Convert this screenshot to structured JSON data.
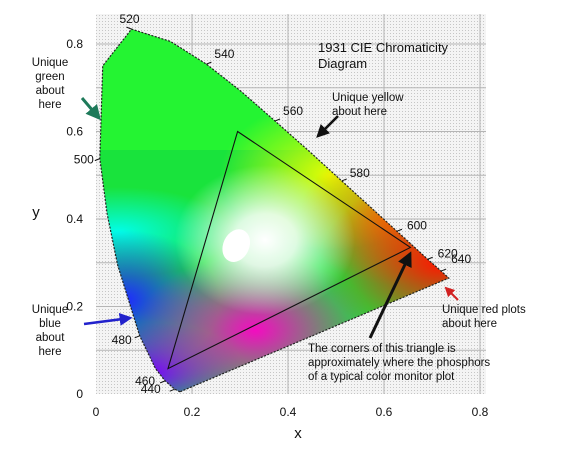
{
  "chart_data": {
    "type": "scatter",
    "title": "1931 CIE Chromaticity Diagram",
    "xlabel": "x",
    "ylabel": "y",
    "xlim": [
      0,
      0.8
    ],
    "ylim": [
      0,
      0.85
    ],
    "x_ticks": [
      {
        "value": 0,
        "label": "0"
      },
      {
        "value": 0.2,
        "label": "0.2"
      },
      {
        "value": 0.4,
        "label": "0.4"
      },
      {
        "value": 0.6,
        "label": "0.6"
      },
      {
        "value": 0.8,
        "label": "0.8"
      }
    ],
    "y_ticks": [
      {
        "value": 0,
        "label": "0"
      },
      {
        "value": 0.2,
        "label": "0.2"
      },
      {
        "value": 0.4,
        "label": "0.4"
      },
      {
        "value": 0.6,
        "label": "0.6"
      },
      {
        "value": 0.8,
        "label": "0.8"
      }
    ],
    "grid": true,
    "spectral_locus": [
      {
        "nm": "440",
        "x": 0.164,
        "y": 0.011
      },
      {
        "nm": "460",
        "x": 0.144,
        "y": 0.03
      },
      {
        "nm": "480",
        "x": 0.091,
        "y": 0.133
      },
      {
        "nm": "500",
        "x": 0.008,
        "y": 0.538
      },
      {
        "nm": "520",
        "x": 0.074,
        "y": 0.834
      },
      {
        "nm": "540",
        "x": 0.23,
        "y": 0.754
      },
      {
        "nm": "560",
        "x": 0.373,
        "y": 0.624
      },
      {
        "nm": "580",
        "x": 0.512,
        "y": 0.487
      },
      {
        "nm": "600",
        "x": 0.627,
        "y": 0.372
      },
      {
        "nm": "620",
        "x": 0.691,
        "y": 0.308
      },
      {
        "nm": "640",
        "x": 0.719,
        "y": 0.281
      }
    ],
    "locus_shape": [
      [
        0.175,
        0.005
      ],
      [
        0.164,
        0.011
      ],
      [
        0.144,
        0.03
      ],
      [
        0.124,
        0.058
      ],
      [
        0.091,
        0.133
      ],
      [
        0.045,
        0.295
      ],
      [
        0.023,
        0.413
      ],
      [
        0.008,
        0.538
      ],
      [
        0.014,
        0.75
      ],
      [
        0.074,
        0.834
      ],
      [
        0.155,
        0.806
      ],
      [
        0.23,
        0.754
      ],
      [
        0.302,
        0.692
      ],
      [
        0.373,
        0.624
      ],
      [
        0.444,
        0.555
      ],
      [
        0.512,
        0.487
      ],
      [
        0.575,
        0.424
      ],
      [
        0.627,
        0.372
      ],
      [
        0.665,
        0.334
      ],
      [
        0.691,
        0.308
      ],
      [
        0.719,
        0.281
      ],
      [
        0.735,
        0.265
      ]
    ],
    "triangle": [
      {
        "x": 0.295,
        "y": 0.6
      },
      {
        "x": 0.655,
        "y": 0.335
      },
      {
        "x": 0.15,
        "y": 0.058
      }
    ],
    "white_point": {
      "x": 0.313,
      "y": 0.33
    },
    "annotations": [
      {
        "id": "green",
        "lines": [
          "Unique",
          "green",
          "about",
          "here"
        ],
        "color": "#1e7a5a"
      },
      {
        "id": "yellow",
        "lines": [
          "Unique yellow",
          "about here"
        ],
        "color": "#111111"
      },
      {
        "id": "blue",
        "lines": [
          "Unique",
          "blue",
          "about",
          "here"
        ],
        "color": "#2222aa"
      },
      {
        "id": "red",
        "lines": [
          "Unique red plots",
          "about here"
        ],
        "color": "#d22222"
      },
      {
        "id": "triangle-note",
        "lines": [
          "The corners of this triangle is",
          "approximately where the phosphors",
          "of a typical color monitor plot"
        ],
        "color": "#111111"
      }
    ]
  }
}
